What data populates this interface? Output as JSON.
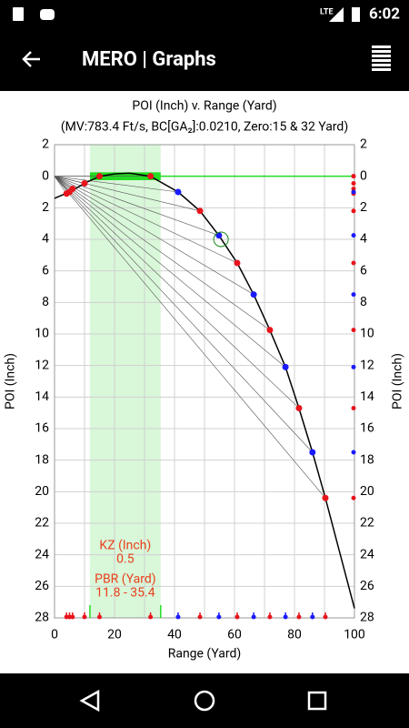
{
  "status_bar": {
    "network": "LTE",
    "time": "6:02"
  },
  "app_bar": {
    "title": "MERO | Graphs"
  },
  "chart_data": {
    "type": "line",
    "title": "POI (Inch) v. Range (Yard)",
    "subtitle": "(MV:783.4 Ft/s, BC[GA₂]:0.0210, Zero:15 & 32 Yard)",
    "x_label": "Range (Yard)",
    "y_label": "POI (Inch)",
    "y2_label": "POI (Inch)",
    "xlim": [
      0,
      100
    ],
    "ylim": [
      -2,
      28
    ],
    "y_inverted": true,
    "xticks": [
      0,
      20,
      40,
      60,
      80,
      100
    ],
    "xminor_ticks": [
      10,
      30,
      50,
      70,
      90
    ],
    "yticks": [
      {
        "value": -2,
        "label": "2"
      },
      0,
      2,
      4,
      6,
      8,
      10,
      12,
      14,
      16,
      18,
      20,
      22,
      24,
      26,
      28
    ],
    "grid": true,
    "series": [
      {
        "name": "Trajectory",
        "color": "#000000",
        "x": [
          0,
          5,
          10,
          15,
          20,
          25,
          32,
          41.2,
          48.5,
          54.8,
          60.9,
          66.4,
          71.8,
          77,
          81.5,
          86,
          90.3,
          100
        ],
        "values": [
          1.4,
          1.0,
          0.45,
          0,
          -0.15,
          -0.2,
          0,
          1.0,
          2.2,
          3.75,
          5.5,
          7.5,
          9.75,
          12.1,
          14.7,
          17.5,
          20.4,
          27.4
        ]
      },
      {
        "name": "Red points",
        "color": "#e8141c",
        "x": [
          4,
          5,
          6,
          10,
          15,
          32,
          48.5,
          60.9,
          71.8,
          81.5,
          90.3
        ],
        "values": [
          1.1,
          1.0,
          0.8,
          0.45,
          0,
          0,
          2.2,
          5.5,
          9.75,
          14.7,
          20.4
        ]
      },
      {
        "name": "Blue points",
        "color": "#1a1aff",
        "x": [
          41.2,
          54.8,
          66.4,
          77,
          86
        ],
        "values": [
          1.0,
          3.75,
          7.5,
          12.1,
          17.5
        ]
      }
    ],
    "highlight": {
      "x": 55.5,
      "y": 4.0
    },
    "kill_zone": {
      "label": "KZ (Inch)",
      "value": 0.5,
      "color": "#22dd22"
    },
    "pbr": {
      "label": "PBR (Yard)",
      "start": 11.8,
      "end": 35.4,
      "value_label": "11.8 - 35.4",
      "color": "#d9f7d9"
    },
    "annotation_color": "#e8401c"
  }
}
